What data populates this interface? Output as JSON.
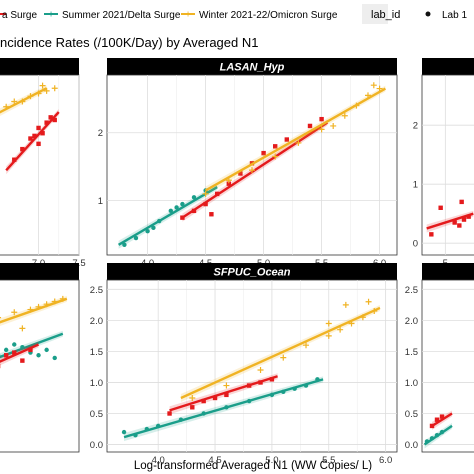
{
  "figure": {
    "title": "ncidence Rates (/100K/Day) by Averaged N1",
    "xlabel": "Log-transformed Averaged N1 (WW Copies/ L)",
    "legend": {
      "items": [
        {
          "label": "a Surge",
          "color": "#e41a1c"
        },
        {
          "label": "Summer 2021/Delta Surge",
          "color": "#1a9e8a"
        },
        {
          "label": "Winter 2021-22/Omicron Surge",
          "color": "#f0b323"
        }
      ],
      "lab_title": "lab_id",
      "lab_item": "Lab 1"
    }
  },
  "chart_data": [
    {
      "type": "scatter",
      "panel": "top-left",
      "title": "",
      "x_ticks": [
        "7.0",
        "7.5"
      ],
      "y_ticks": [],
      "xlim": [
        6.4,
        7.5
      ],
      "ylim": [
        -0.6,
        2.8
      ],
      "series": [
        {
          "name": "a Surge",
          "color": "#e41a1c",
          "points": [
            [
              6.7,
              1.2
            ],
            [
              6.8,
              1.4
            ],
            [
              6.9,
              1.6
            ],
            [
              7.0,
              1.8
            ],
            [
              7.05,
              1.7
            ],
            [
              7.1,
              1.9
            ],
            [
              7.15,
              2.0
            ],
            [
              7.2,
              1.95
            ],
            [
              7.0,
              1.5
            ],
            [
              6.95,
              1.65
            ]
          ],
          "fit": [
            [
              6.6,
              1.0
            ],
            [
              7.25,
              2.1
            ]
          ]
        },
        {
          "name": "Winter 2021-22/Omicron Surge",
          "color": "#f0b323",
          "points": [
            [
              6.5,
              2.1
            ],
            [
              6.6,
              2.2
            ],
            [
              6.8,
              2.3
            ],
            [
              6.9,
              2.4
            ],
            [
              7.0,
              2.45
            ],
            [
              7.1,
              2.5
            ],
            [
              7.2,
              2.55
            ],
            [
              6.7,
              2.3
            ],
            [
              7.05,
              2.6
            ]
          ],
          "fit": [
            [
              6.4,
              2.0
            ],
            [
              7.1,
              2.55
            ]
          ]
        }
      ]
    },
    {
      "type": "scatter",
      "panel": "top-center",
      "title": "LASAN_Hyp",
      "x_ticks": [
        "4.0",
        "4.5",
        "5.0",
        "5.5",
        "6.0"
      ],
      "y_ticks": [
        "1",
        "2"
      ],
      "xlim": [
        3.65,
        6.15
      ],
      "ylim": [
        0.2,
        2.85
      ],
      "series": [
        {
          "name": "Summer 2021/Delta Surge",
          "color": "#1a9e8a",
          "points": [
            [
              3.8,
              0.35
            ],
            [
              3.9,
              0.45
            ],
            [
              4.0,
              0.55
            ],
            [
              4.1,
              0.7
            ],
            [
              4.2,
              0.85
            ],
            [
              4.3,
              0.95
            ],
            [
              4.4,
              1.05
            ],
            [
              4.5,
              1.15
            ],
            [
              4.05,
              0.6
            ],
            [
              4.25,
              0.9
            ]
          ],
          "fit": [
            [
              3.75,
              0.35
            ],
            [
              4.6,
              1.2
            ]
          ]
        },
        {
          "name": "a Surge",
          "color": "#e41a1c",
          "points": [
            [
              4.3,
              0.75
            ],
            [
              4.4,
              0.85
            ],
            [
              4.5,
              0.95
            ],
            [
              4.6,
              1.1
            ],
            [
              4.7,
              1.25
            ],
            [
              4.8,
              1.4
            ],
            [
              4.9,
              1.55
            ],
            [
              5.0,
              1.7
            ],
            [
              5.2,
              1.9
            ],
            [
              5.4,
              2.1
            ],
            [
              4.55,
              0.8
            ],
            [
              5.1,
              1.8
            ],
            [
              5.5,
              2.2
            ]
          ],
          "fit": [
            [
              4.3,
              0.75
            ],
            [
              5.55,
              2.15
            ]
          ]
        },
        {
          "name": "Winter 2021-22/Omicron Surge",
          "color": "#f0b323",
          "points": [
            [
              4.5,
              1.1
            ],
            [
              4.7,
              1.3
            ],
            [
              4.9,
              1.45
            ],
            [
              5.1,
              1.65
            ],
            [
              5.3,
              1.85
            ],
            [
              5.5,
              2.05
            ],
            [
              5.7,
              2.25
            ],
            [
              5.8,
              2.4
            ],
            [
              5.9,
              2.55
            ],
            [
              6.0,
              2.65
            ],
            [
              5.6,
              2.1
            ],
            [
              5.95,
              2.7
            ]
          ],
          "fit": [
            [
              4.5,
              1.15
            ],
            [
              6.05,
              2.65
            ]
          ]
        }
      ]
    },
    {
      "type": "scatter",
      "panel": "top-right",
      "title": "",
      "x_ticks": [
        "5"
      ],
      "y_ticks": [
        "0",
        "1",
        "2"
      ],
      "xlim": [
        4.5,
        6.0
      ],
      "ylim": [
        -0.2,
        2.85
      ],
      "series": [
        {
          "name": "a Surge",
          "color": "#e41a1c",
          "points": [
            [
              4.7,
              0.15
            ],
            [
              4.9,
              0.6
            ],
            [
              5.3,
              0.3
            ],
            [
              5.4,
              0.4
            ],
            [
              5.5,
              0.45
            ],
            [
              5.2,
              0.35
            ],
            [
              5.35,
              0.7
            ]
          ],
          "fit": [
            [
              4.6,
              0.25
            ],
            [
              5.6,
              0.5
            ]
          ]
        }
      ]
    },
    {
      "type": "scatter",
      "panel": "bottom-left",
      "title": "",
      "x_ticks": [],
      "y_ticks": [],
      "xlim": [
        6.4,
        7.5
      ],
      "ylim": [
        -0.6,
        2.6
      ],
      "series": [
        {
          "name": "Winter 2021-22/Omicron Surge",
          "color": "#f0b323",
          "points": [
            [
              6.5,
              1.9
            ],
            [
              6.7,
              2.0
            ],
            [
              6.9,
              2.05
            ],
            [
              7.1,
              2.15
            ],
            [
              7.2,
              2.2
            ],
            [
              7.3,
              2.25
            ],
            [
              6.8,
              1.7
            ],
            [
              7.0,
              2.1
            ]
          ],
          "fit": [
            [
              6.4,
              1.75
            ],
            [
              7.35,
              2.25
            ]
          ]
        },
        {
          "name": "Summer 2021/Delta Surge",
          "color": "#1a9e8a",
          "points": [
            [
              6.5,
              1.2
            ],
            [
              6.6,
              1.3
            ],
            [
              6.8,
              1.35
            ],
            [
              6.9,
              1.25
            ],
            [
              7.0,
              1.2
            ],
            [
              7.1,
              1.3
            ],
            [
              7.2,
              1.15
            ],
            [
              6.7,
              1.4
            ]
          ],
          "fit": [
            [
              6.4,
              1.1
            ],
            [
              7.3,
              1.6
            ]
          ]
        },
        {
          "name": "a Surge",
          "color": "#e41a1c",
          "points": [
            [
              6.5,
              1.0
            ],
            [
              6.6,
              1.2
            ],
            [
              6.7,
              1.25
            ],
            [
              6.8,
              1.1
            ],
            [
              6.9,
              1.3
            ]
          ],
          "fit": [
            [
              6.4,
              1.0
            ],
            [
              7.0,
              1.4
            ]
          ]
        }
      ]
    },
    {
      "type": "scatter",
      "panel": "bottom-center",
      "title": "SFPUC_Ocean",
      "x_ticks": [
        "4.0",
        "4.5",
        "5.0",
        "5.5",
        "6.0"
      ],
      "y_ticks": [
        "0.0",
        "0.5",
        "1.0",
        "1.5",
        "2.0",
        "2.5"
      ],
      "xlim": [
        3.55,
        6.1
      ],
      "ylim": [
        -0.12,
        2.65
      ],
      "series": [
        {
          "name": "Summer 2021/Delta Surge",
          "color": "#1a9e8a",
          "points": [
            [
              3.7,
              0.2
            ],
            [
              3.8,
              0.15
            ],
            [
              3.9,
              0.25
            ],
            [
              4.0,
              0.3
            ],
            [
              4.2,
              0.4
            ],
            [
              4.4,
              0.5
            ],
            [
              4.6,
              0.6
            ],
            [
              4.8,
              0.7
            ],
            [
              5.0,
              0.8
            ],
            [
              5.1,
              0.85
            ],
            [
              5.2,
              0.9
            ],
            [
              5.3,
              0.95
            ],
            [
              5.4,
              1.05
            ]
          ],
          "fit": [
            [
              3.7,
              0.12
            ],
            [
              5.45,
              1.05
            ]
          ]
        },
        {
          "name": "a Surge",
          "color": "#e41a1c",
          "points": [
            [
              4.1,
              0.5
            ],
            [
              4.3,
              0.6
            ],
            [
              4.5,
              0.75
            ],
            [
              4.6,
              0.8
            ],
            [
              4.8,
              0.95
            ],
            [
              5.0,
              1.05
            ],
            [
              4.4,
              0.7
            ],
            [
              4.9,
              1.0
            ]
          ],
          "fit": [
            [
              4.1,
              0.55
            ],
            [
              5.05,
              1.1
            ]
          ]
        },
        {
          "name": "Winter 2021-22/Omicron Surge",
          "color": "#f0b323",
          "points": [
            [
              4.3,
              0.75
            ],
            [
              4.6,
              0.95
            ],
            [
              4.9,
              1.2
            ],
            [
              5.1,
              1.4
            ],
            [
              5.3,
              1.6
            ],
            [
              5.5,
              1.75
            ],
            [
              5.6,
              1.85
            ],
            [
              5.7,
              1.95
            ],
            [
              5.8,
              2.05
            ],
            [
              5.9,
              2.15
            ],
            [
              5.65,
              2.25
            ],
            [
              5.85,
              2.3
            ],
            [
              5.5,
              1.95
            ]
          ],
          "fit": [
            [
              4.2,
              0.75
            ],
            [
              5.95,
              2.2
            ]
          ]
        }
      ]
    },
    {
      "type": "scatter",
      "panel": "bottom-right",
      "title": "",
      "x_ticks": [],
      "y_ticks": [
        "0.0",
        "0.5",
        "1.0",
        "1.5",
        "2.0",
        "2.5"
      ],
      "xlim": [
        4.6,
        6.0
      ],
      "ylim": [
        -0.12,
        2.65
      ],
      "series": [
        {
          "name": "Summer 2021/Delta Surge",
          "color": "#1a9e8a",
          "points": [
            [
              4.7,
              0.05
            ],
            [
              4.8,
              0.1
            ],
            [
              4.9,
              0.15
            ],
            [
              5.0,
              0.2
            ]
          ],
          "fit": [
            [
              4.65,
              0.0
            ],
            [
              5.2,
              0.3
            ]
          ]
        },
        {
          "name": "a Surge",
          "color": "#e41a1c",
          "points": [
            [
              4.8,
              0.3
            ],
            [
              4.9,
              0.4
            ],
            [
              5.0,
              0.45
            ]
          ],
          "fit": [
            [
              4.8,
              0.3
            ],
            [
              5.2,
              0.5
            ]
          ]
        }
      ]
    }
  ]
}
